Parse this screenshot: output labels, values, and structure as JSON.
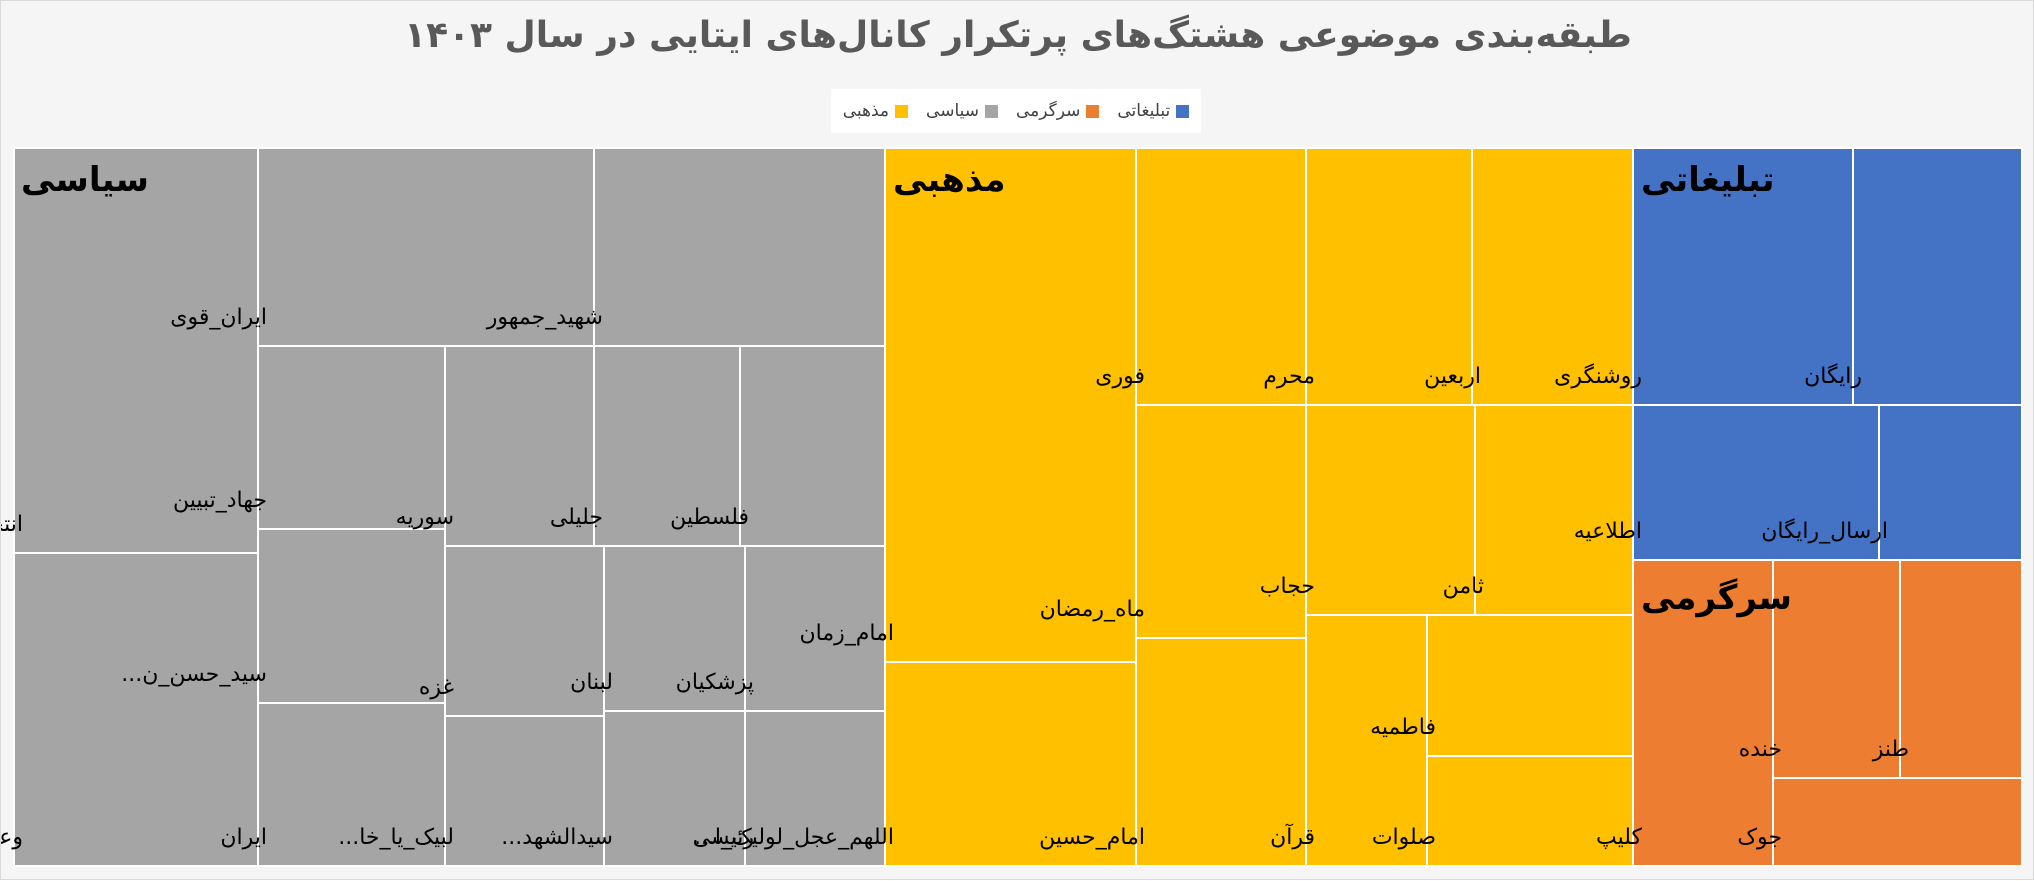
{
  "chart_data": {
    "type": "treemap",
    "title": "طبقه‌بندی موضوعی هشتگ‌های پرتکرار کانال‌های ایتایی در سال ۱۴۰۳",
    "legend_position": "top",
    "legend": [
      {
        "name": "مذهبی",
        "color": "#FFC000"
      },
      {
        "name": "سیاسی",
        "color": "#A5A5A5"
      },
      {
        "name": "سرگرمی",
        "color": "#ED7D31"
      },
      {
        "name": "تبلیغاتی",
        "color": "#4472C4"
      }
    ],
    "categories": [
      {
        "name": "سیاسی",
        "color": "#A5A5A5",
        "items": [
          {
            "label": "انتخابات"
          },
          {
            "label": "وعده_صادق"
          },
          {
            "label": "ایران_قوی"
          },
          {
            "label": "شهید_جمهور"
          },
          {
            "label": "جهاد_تبیین"
          },
          {
            "label": "سید_حسن_ن..."
          },
          {
            "label": "ایران"
          },
          {
            "label": "سوریه"
          },
          {
            "label": "غزه"
          },
          {
            "label": "لبیک_یا_خا..."
          },
          {
            "label": "جلیلی"
          },
          {
            "label": "فلسطین"
          },
          {
            "label": "لبنان"
          },
          {
            "label": "پزشکیان"
          },
          {
            "label": "سیدالشهد..."
          },
          {
            "label": "رئیسی"
          }
        ]
      },
      {
        "name": "مذهبی",
        "color": "#FFC000",
        "items": [
          {
            "label": "امام_زمان"
          },
          {
            "label": "اللهم_عجل_لولیک_ا..."
          },
          {
            "label": "فوری"
          },
          {
            "label": "محرم"
          },
          {
            "label": "اربعین"
          },
          {
            "label": "ماه_رمضان"
          },
          {
            "label": "امام_حسین"
          },
          {
            "label": "حجاب"
          },
          {
            "label": "ثامن"
          },
          {
            "label": "قرآن"
          },
          {
            "label": "فاطمیه"
          },
          {
            "label": "صلوات"
          }
        ]
      },
      {
        "name": "تبلیغاتی",
        "color": "#4472C4",
        "items": [
          {
            "label": "روشنگری"
          },
          {
            "label": "رایگان"
          },
          {
            "label": "اطلاعیه"
          },
          {
            "label": "ارسال_رایگان"
          }
        ]
      },
      {
        "name": "سرگرمی",
        "color": "#ED7D31",
        "items": [
          {
            "label": "کلیپ"
          },
          {
            "label": "خنده"
          },
          {
            "label": "طنز"
          },
          {
            "label": "جوک"
          }
        ]
      }
    ]
  }
}
